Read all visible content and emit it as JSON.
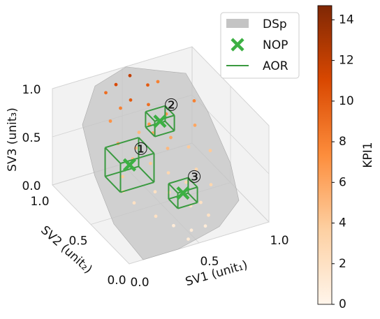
{
  "chart_data": {
    "type": "scatter3d",
    "xlabel": "SV1 (unit₁)",
    "ylabel": "SV2 (unit₂)",
    "zlabel": "SV3 (unit₃)",
    "clabel": "KPI1",
    "xlim": [
      0,
      1
    ],
    "ylim": [
      0,
      1
    ],
    "zlim": [
      0,
      1
    ],
    "clim": [
      0,
      14.7
    ],
    "xticks": [
      {
        "value": 0,
        "label": "0.0"
      },
      {
        "value": 0.5,
        "label": "0.5"
      },
      {
        "value": 1,
        "label": "1.0"
      }
    ],
    "yticks": [
      {
        "value": 0,
        "label": "0.0"
      },
      {
        "value": 0.5,
        "label": "0.5"
      },
      {
        "value": 1,
        "label": "1.0"
      }
    ],
    "zticks": [
      {
        "value": 0,
        "label": "0.0"
      },
      {
        "value": 0.5,
        "label": "0.5"
      },
      {
        "value": 1,
        "label": "1.0"
      }
    ],
    "cticks": [
      0,
      2,
      4,
      6,
      8,
      10,
      12,
      14
    ],
    "colormap": [
      "#fff5eb",
      "#fdd0a2",
      "#fd8d3c",
      "#d94801",
      "#7f2704"
    ],
    "grid": true,
    "legend": "upper right",
    "points": {
      "x": [
        0.3,
        0.4,
        0.5,
        0.6,
        0.7,
        0.45,
        0.55,
        0.65,
        0.35,
        0.25,
        0.5,
        0.6,
        0.4,
        0.3,
        0.7,
        0.8,
        0.2,
        0.5,
        0.6,
        0.45,
        0.35,
        0.55,
        0.75,
        0.65,
        0.4,
        0.3,
        0.5,
        0.2,
        0.6,
        0.8,
        0.15,
        0.4,
        0.55,
        0.7,
        0.35,
        0.5,
        0.25,
        0.65,
        0.45,
        0.85
      ],
      "y": [
        0.85,
        0.9,
        0.9,
        0.85,
        0.9,
        0.8,
        0.75,
        0.7,
        0.75,
        0.7,
        0.6,
        0.55,
        0.6,
        0.5,
        0.5,
        0.6,
        0.45,
        0.4,
        0.35,
        0.3,
        0.3,
        0.2,
        0.3,
        0.15,
        0.15,
        0.2,
        0.1,
        0.3,
        0.1,
        0.4,
        0.35,
        0.45,
        0.5,
        0.4,
        0.55,
        0.65,
        0.6,
        0.25,
        0.05,
        0.7
      ],
      "z": [
        0.95,
        0.95,
        1.0,
        0.9,
        0.85,
        0.85,
        0.8,
        0.7,
        0.85,
        0.8,
        0.65,
        0.6,
        0.7,
        0.55,
        0.5,
        0.6,
        0.45,
        0.4,
        0.3,
        0.3,
        0.35,
        0.2,
        0.25,
        0.1,
        0.1,
        0.2,
        0.05,
        0.3,
        0.05,
        0.5,
        0.4,
        0.5,
        0.55,
        0.35,
        0.6,
        0.7,
        0.65,
        0.15,
        0.02,
        0.75
      ],
      "c": [
        9,
        11,
        12,
        10,
        8,
        10,
        9,
        7,
        8,
        7,
        6,
        6,
        5,
        5,
        4,
        6,
        4,
        3,
        3,
        3,
        2,
        2,
        3,
        2,
        1,
        2,
        1,
        2,
        1,
        4,
        3,
        4,
        5,
        3,
        5,
        7,
        6,
        2,
        1,
        8
      ]
    },
    "series": [
      {
        "name": "DSp",
        "color": "#c4c4c4",
        "x": [
          0.25,
          0.5,
          0.75,
          0.9,
          1.0,
          1.0,
          0.95,
          0.7,
          0.35,
          0.1,
          0.0,
          0.0,
          0.05
        ],
        "y": [
          0.9,
          0.95,
          0.95,
          0.9,
          0.8,
          0.5,
          0.3,
          0.1,
          0.0,
          0.0,
          0.2,
          0.45,
          0.7
        ],
        "z": [
          1.0,
          1.05,
          0.9,
          0.85,
          0.5,
          0.2,
          0.0,
          0.0,
          0.0,
          0.0,
          0.25,
          0.55,
          0.85
        ]
      },
      {
        "name": "NOP",
        "color": "#3cb043",
        "x": [
          0.25,
          0.55,
          0.55
        ],
        "y": [
          0.45,
          0.6,
          0.3
        ],
        "z": [
          0.55,
          0.75,
          0.25
        ]
      },
      {
        "name": "AOR",
        "color": "#3a9a40",
        "x": [
          0.25,
          0.55,
          0.55
        ],
        "y": [
          0.45,
          0.6,
          0.3
        ],
        "z": [
          0.55,
          0.75,
          0.25
        ],
        "dx": [
          0.12,
          0.07,
          0.07
        ],
        "dy": [
          0.1,
          0.06,
          0.06
        ],
        "dz": [
          0.15,
          0.08,
          0.08
        ]
      }
    ],
    "annotations": [
      "①",
      "②",
      "③"
    ]
  }
}
